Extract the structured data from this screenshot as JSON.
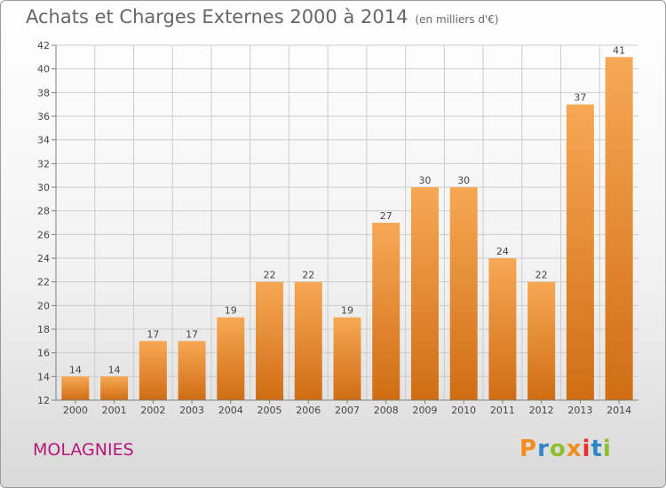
{
  "header": {
    "title": "Achats et Charges Externes 2000 à 2014",
    "unit": "(en milliers d'€)"
  },
  "footer": {
    "commune": "MOLAGNIES",
    "logo": "Proxiti"
  },
  "colors": {
    "bar_light": "#f7a854",
    "bar_dark": "#d06d14",
    "grid": "#cccccc",
    "axis": "#7f7f7f",
    "text": "#444444",
    "commune": "#b5177a",
    "logo_letters": [
      "#f28c1b",
      "#2f87c8",
      "#8dbe2c",
      "#f28c1b",
      "#e6312c",
      "#2f87c8",
      "#8dbe2c"
    ]
  },
  "chart_data": {
    "type": "bar",
    "title": "Achats et Charges Externes 2000 à 2014",
    "subtitle": "(en milliers d'€)",
    "categories": [
      "2000",
      "2001",
      "2002",
      "2003",
      "2004",
      "2005",
      "2006",
      "2007",
      "2008",
      "2009",
      "2010",
      "2011",
      "2012",
      "2013",
      "2014"
    ],
    "values": [
      14,
      14,
      17,
      17,
      19,
      22,
      22,
      19,
      27,
      30,
      30,
      24,
      22,
      37,
      41
    ],
    "data_labels": [
      "14",
      "14",
      "17",
      "17",
      "19",
      "22",
      "22",
      "19",
      "27",
      "30",
      "30",
      "24",
      "22",
      "37",
      "41"
    ],
    "ylim": [
      12,
      42
    ],
    "yticks": [
      12,
      14,
      16,
      18,
      20,
      22,
      24,
      26,
      28,
      30,
      32,
      34,
      36,
      38,
      40,
      42
    ],
    "ytick_labels": [
      "12",
      "14",
      "16",
      "18",
      "20",
      "22",
      "24",
      "26",
      "28",
      "30",
      "32",
      "34",
      "36",
      "38",
      "40",
      "42"
    ],
    "grid": true,
    "xlabel": "",
    "ylabel": ""
  }
}
